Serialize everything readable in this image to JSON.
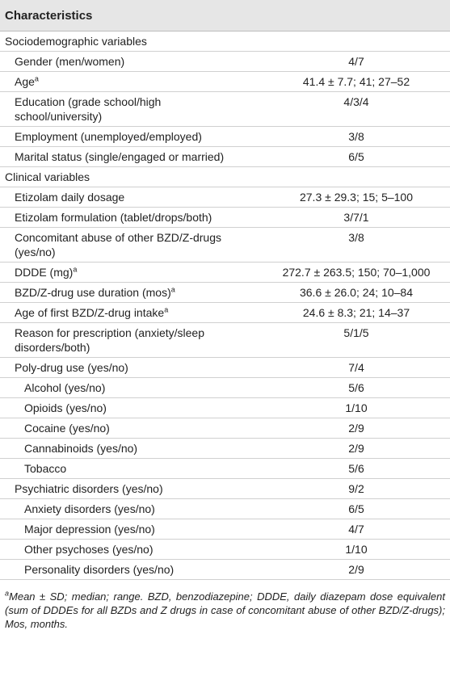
{
  "table": {
    "header": "Characteristics",
    "rows": [
      {
        "label": "Sociodemographic variables",
        "level": 0
      },
      {
        "label": "Gender (men/women)",
        "value": "4/7",
        "level": 1
      },
      {
        "label": "Age",
        "note": "a",
        "value": "41.4 ± 7.7; 41; 27–52",
        "level": 1
      },
      {
        "label": "Education (grade school/high school/university)",
        "value": "4/3/4",
        "level": 1
      },
      {
        "label": "Employment (unemployed/employed)",
        "value": "3/8",
        "level": 1
      },
      {
        "label": "Marital status (single/engaged or married)",
        "value": "6/5",
        "level": 1
      },
      {
        "label": "Clinical variables",
        "level": 0
      },
      {
        "label": "Etizolam daily dosage",
        "value": "27.3 ± 29.3; 15; 5–100",
        "level": 1
      },
      {
        "label": "Etizolam formulation (tablet/drops/both)",
        "value": "3/7/1",
        "level": 1
      },
      {
        "label": "Concomitant abuse of other BZD/Z-drugs (yes/no)",
        "value": "3/8",
        "level": 1
      },
      {
        "label": "DDDE (mg)",
        "note": "a",
        "value": "272.7 ± 263.5; 150; 70–1,000",
        "level": 1
      },
      {
        "label": "BZD/Z-drug use duration (mos)",
        "note": "a",
        "value": "36.6 ± 26.0; 24; 10–84",
        "level": 1
      },
      {
        "label": "Age of first BZD/Z-drug intake",
        "note": "a",
        "value": "24.6 ± 8.3; 21; 14–37",
        "level": 1
      },
      {
        "label": "Reason for prescription (anxiety/sleep disorders/both)",
        "value": "5/1/5",
        "level": 1
      },
      {
        "label": "Poly-drug use (yes/no)",
        "value": "7/4",
        "level": 1
      },
      {
        "label": "Alcohol (yes/no)",
        "value": "5/6",
        "level": 2
      },
      {
        "label": "Opioids (yes/no)",
        "value": "1/10",
        "level": 2
      },
      {
        "label": "Cocaine (yes/no)",
        "value": "2/9",
        "level": 2
      },
      {
        "label": "Cannabinoids (yes/no)",
        "value": "2/9",
        "level": 2
      },
      {
        "label": "Tobacco",
        "value": "5/6",
        "level": 2
      },
      {
        "label": "Psychiatric disorders (yes/no)",
        "value": "9/2",
        "level": 1
      },
      {
        "label": "Anxiety disorders (yes/no)",
        "value": "6/5",
        "level": 2
      },
      {
        "label": "Major depression (yes/no)",
        "value": "4/7",
        "level": 2
      },
      {
        "label": "Other psychoses (yes/no)",
        "value": "1/10",
        "level": 2
      },
      {
        "label": "Personality disorders (yes/no)",
        "value": "2/9",
        "level": 2
      }
    ]
  },
  "footnote": {
    "marker": "a",
    "text": "Mean ± SD; median; range. BZD, benzodiazepine; DDDE, daily diazepam dose equivalent (sum of DDDEs for all BZDs and Z drugs in case of concomitant abuse of other BZD/Z-drugs); Mos, months."
  }
}
